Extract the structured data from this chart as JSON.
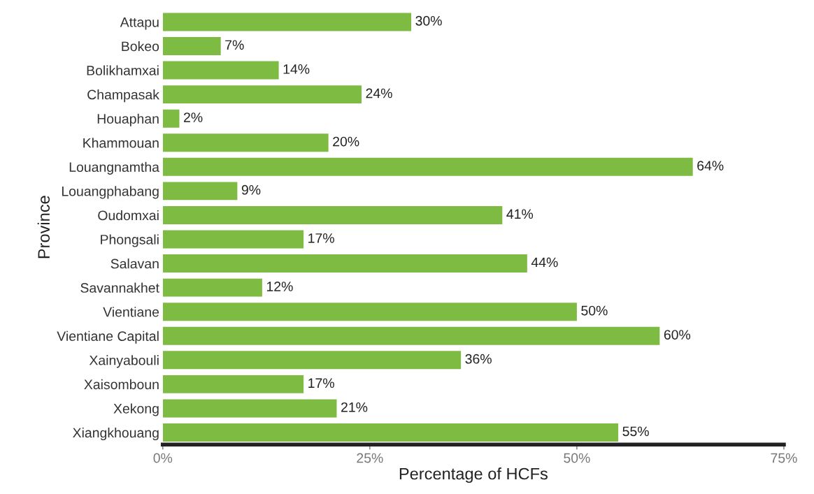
{
  "chart_data": {
    "type": "bar",
    "orientation": "horizontal",
    "xlabel": "Percentage of HCFs",
    "ylabel": "Province",
    "categories": [
      "Attapu",
      "Bokeo",
      "Bolikhamxai",
      "Champasak",
      "Houaphan",
      "Khammouan",
      "Louangnamtha",
      "Louangphabang",
      "Oudomxai",
      "Phongsali",
      "Salavan",
      "Savannakhet",
      "Vientiane",
      "Vientiane Capital",
      "Xainyabouli",
      "Xaisomboun",
      "Xekong",
      "Xiangkhouang"
    ],
    "values": [
      30,
      7,
      14,
      24,
      2,
      20,
      64,
      9,
      41,
      17,
      44,
      12,
      50,
      60,
      36,
      17,
      21,
      55
    ],
    "value_labels": [
      "30%",
      "7%",
      "14%",
      "24%",
      "2%",
      "20%",
      "64%",
      "9%",
      "41%",
      "17%",
      "44%",
      "12%",
      "50%",
      "60%",
      "36%",
      "17%",
      "21%",
      "55%"
    ],
    "color": "#7dbb42",
    "xlim": [
      0,
      75
    ],
    "xticks": [
      {
        "value": 0,
        "label": "0%"
      },
      {
        "value": 25,
        "label": "25%"
      },
      {
        "value": 50,
        "label": "50%"
      },
      {
        "value": 75,
        "label": "75%"
      }
    ],
    "grid": false,
    "legend": false
  }
}
